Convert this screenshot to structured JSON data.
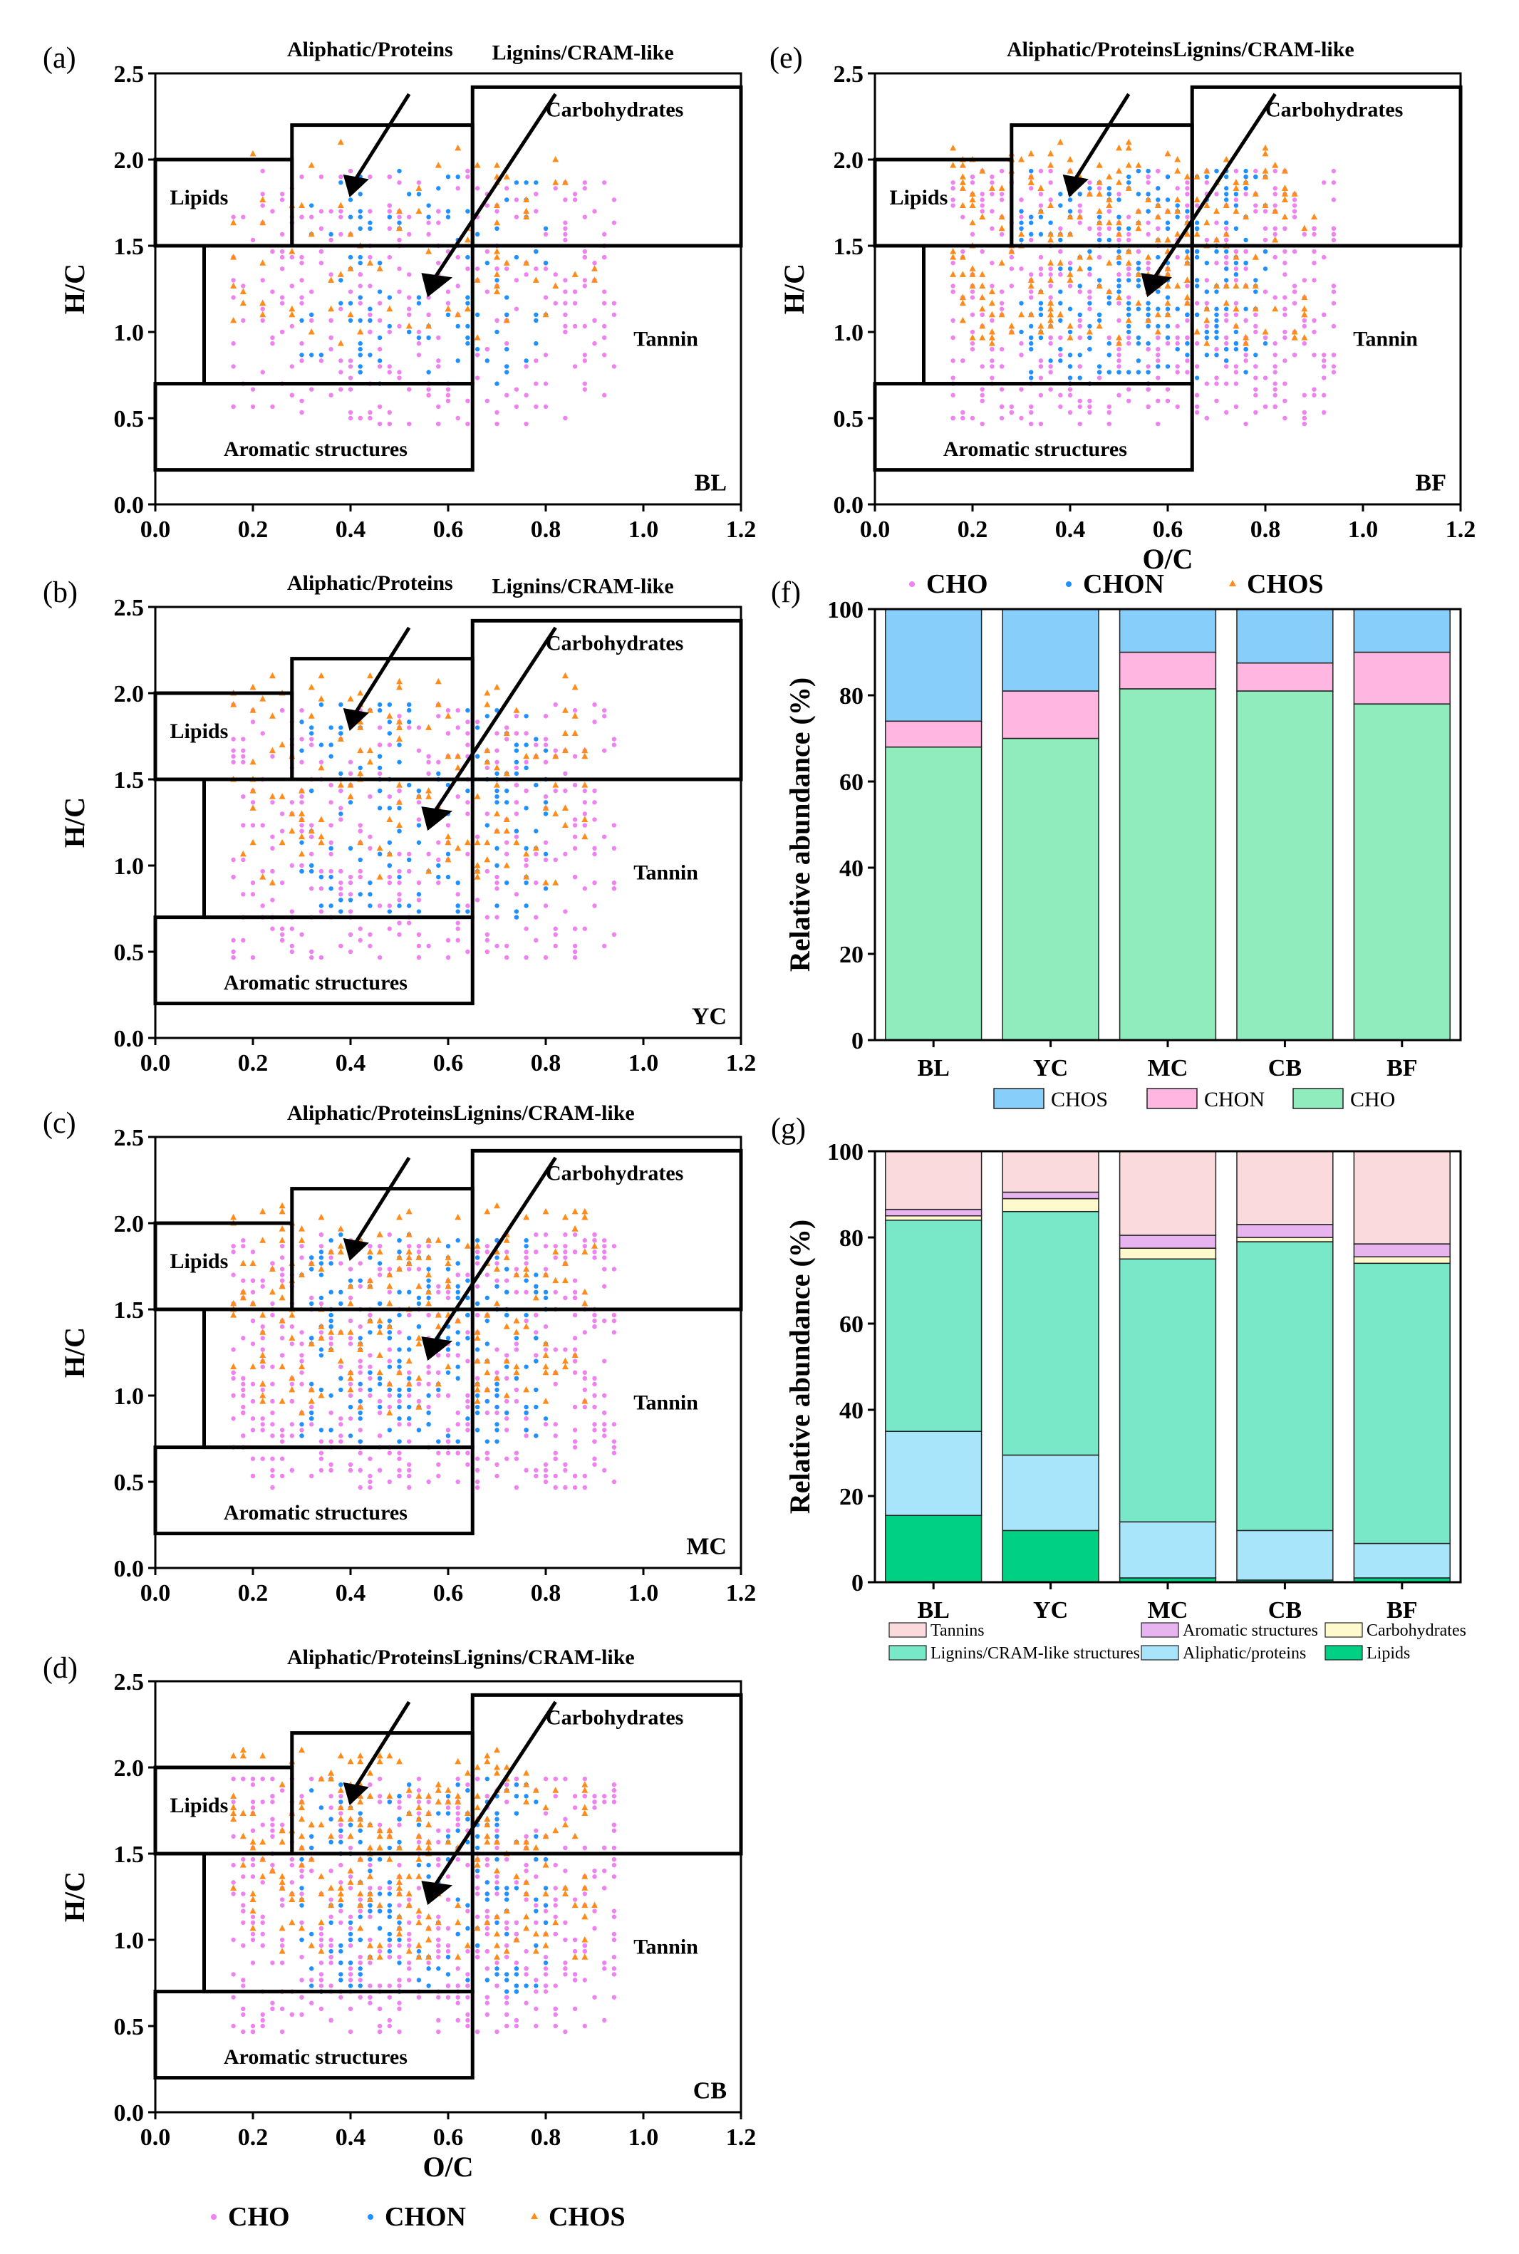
{
  "legend_vk": {
    "items": [
      "CHO",
      "CHON",
      "CHOS"
    ]
  },
  "colors": {
    "CHO": "#ee82ee",
    "CHON": "#1e90ff",
    "CHOS": "#ff8c1a",
    "bar_CHOS": "#87cefa",
    "bar_CHON": "#ffb6e1",
    "bar_CHO": "#90ecbc",
    "Tannins": "#fadadd",
    "Aromatic structures": "#e8b4f0",
    "Carbohydrates": "#fffacd",
    "Lignins": "#78e8c8",
    "Aliphatic": "#a8e4fa",
    "Lipids": "#00d084"
  },
  "chart_data": [
    {
      "type": "scatter",
      "panel": "(a)",
      "sample": "BL",
      "xlabel": "",
      "ylabel": "H/C",
      "xlim": [
        0,
        1.2
      ],
      "ylim": [
        0,
        2.5
      ],
      "xticks": [
        "0.0",
        "0.2",
        "0.4",
        "0.6",
        "0.8",
        "1.0",
        "1.2"
      ],
      "yticks": [
        "0.0",
        "0.5",
        "1.0",
        "1.5",
        "2.0",
        "2.5"
      ],
      "regions": [
        "Lipids",
        "Aliphatic/Proteins",
        "Lignins/CRAM-like",
        "Carbohydrates",
        "Tannin",
        "Aromatic structures"
      ],
      "density": {
        "CHO": 340,
        "CHON": 110,
        "CHOS": 80
      }
    },
    {
      "type": "scatter",
      "panel": "(b)",
      "sample": "YC",
      "xlabel": "",
      "ylabel": "H/C",
      "xlim": [
        0,
        1.2
      ],
      "ylim": [
        0,
        2.5
      ],
      "xticks": [
        "0.0",
        "0.2",
        "0.4",
        "0.6",
        "0.8",
        "1.0",
        "1.2"
      ],
      "yticks": [
        "0.0",
        "0.5",
        "1.0",
        "1.5",
        "2.0",
        "2.5"
      ],
      "regions": [
        "Lipids",
        "Aliphatic/Proteins",
        "Lignins/CRAM-like",
        "Carbohydrates",
        "Tannin",
        "Aromatic structures"
      ],
      "density": {
        "CHO": 360,
        "CHON": 150,
        "CHOS": 140
      }
    },
    {
      "type": "scatter",
      "panel": "(c)",
      "sample": "MC",
      "xlabel": "",
      "ylabel": "H/C",
      "xlim": [
        0,
        1.2
      ],
      "ylim": [
        0,
        2.5
      ],
      "xticks": [
        "0.0",
        "0.2",
        "0.4",
        "0.6",
        "0.8",
        "1.0",
        "1.2"
      ],
      "yticks": [
        "0.0",
        "0.5",
        "1.0",
        "1.5",
        "2.0",
        "2.5"
      ],
      "regions": [
        "Lipids",
        "Aliphatic/ProteinsLignins/CRAM-like",
        "Carbohydrates",
        "Tannin",
        "Aromatic structures"
      ],
      "density": {
        "CHO": 560,
        "CHON": 220,
        "CHOS": 200
      }
    },
    {
      "type": "scatter",
      "panel": "(d)",
      "sample": "CB",
      "xlabel": "O/C",
      "ylabel": "H/C",
      "xlim": [
        0,
        1.2
      ],
      "ylim": [
        0,
        2.5
      ],
      "xticks": [
        "0.0",
        "0.2",
        "0.4",
        "0.6",
        "0.8",
        "1.0",
        "1.2"
      ],
      "yticks": [
        "0.0",
        "0.5",
        "1.0",
        "1.5",
        "2.0",
        "2.5"
      ],
      "regions": [
        "Lipids",
        "Aliphatic/ProteinsLignins/CRAM-like",
        "Carbohydrates",
        "Tannin",
        "Aromatic structures"
      ],
      "density": {
        "CHO": 560,
        "CHON": 200,
        "CHOS": 260
      }
    },
    {
      "type": "scatter",
      "panel": "(e)",
      "sample": "BF",
      "xlabel": "O/C",
      "ylabel": "H/C",
      "xlim": [
        0,
        1.2
      ],
      "ylim": [
        0,
        2.5
      ],
      "xticks": [
        "0.0",
        "0.2",
        "0.4",
        "0.6",
        "0.8",
        "1.0",
        "1.2"
      ],
      "yticks": [
        "0.0",
        "0.5",
        "1.0",
        "1.5",
        "2.0",
        "2.5"
      ],
      "regions": [
        "Lipids",
        "Aliphatic/ProteinsLignins/CRAM-like",
        "Carbohydrates",
        "Tannin",
        "Aromatic structures"
      ],
      "density": {
        "CHO": 560,
        "CHON": 260,
        "CHOS": 260
      }
    },
    {
      "type": "bar",
      "stacked": true,
      "panel": "(f)",
      "ylabel": "Relative abundance (%)",
      "ylim": [
        0,
        100
      ],
      "yticks": [
        "0",
        "20",
        "40",
        "60",
        "80",
        "100"
      ],
      "categories": [
        "BL",
        "YC",
        "MC",
        "CB",
        "BF"
      ],
      "series": [
        {
          "name": "CHO",
          "values": [
            68,
            70,
            81.5,
            81,
            78
          ]
        },
        {
          "name": "CHON",
          "values": [
            6,
            11,
            8.5,
            6.5,
            12
          ]
        },
        {
          "name": "CHOS",
          "values": [
            26,
            19,
            10,
            12.5,
            10
          ]
        }
      ],
      "legend": [
        "CHOS",
        "CHON",
        "CHO"
      ]
    },
    {
      "type": "bar",
      "stacked": true,
      "panel": "(g)",
      "ylabel": "Relative abundance (%)",
      "ylim": [
        0,
        100
      ],
      "yticks": [
        "0",
        "20",
        "40",
        "60",
        "80",
        "100"
      ],
      "categories": [
        "BL",
        "YC",
        "MC",
        "CB",
        "BF"
      ],
      "series": [
        {
          "name": "Lipids",
          "values": [
            15.5,
            12,
            1,
            0.5,
            1
          ]
        },
        {
          "name": "Aliphatic/proteins",
          "values": [
            19.5,
            17.5,
            13,
            11.5,
            8
          ]
        },
        {
          "name": "Lignins/CRAM-like structures",
          "values": [
            49,
            56.5,
            61,
            67,
            65
          ]
        },
        {
          "name": "Carbohydrates",
          "values": [
            1,
            3,
            2.5,
            1,
            1.5
          ]
        },
        {
          "name": "Aromatic structures",
          "values": [
            1.5,
            1.5,
            3,
            3,
            3
          ]
        },
        {
          "name": "Tannins",
          "values": [
            13.5,
            9.5,
            19.5,
            17,
            21.5
          ]
        }
      ],
      "legend": [
        "Tannins",
        "Aromatic structures",
        "Carbohydrates",
        "Lignins/CRAM-like structures",
        "Aliphatic/proteins",
        "Lipids"
      ]
    }
  ]
}
